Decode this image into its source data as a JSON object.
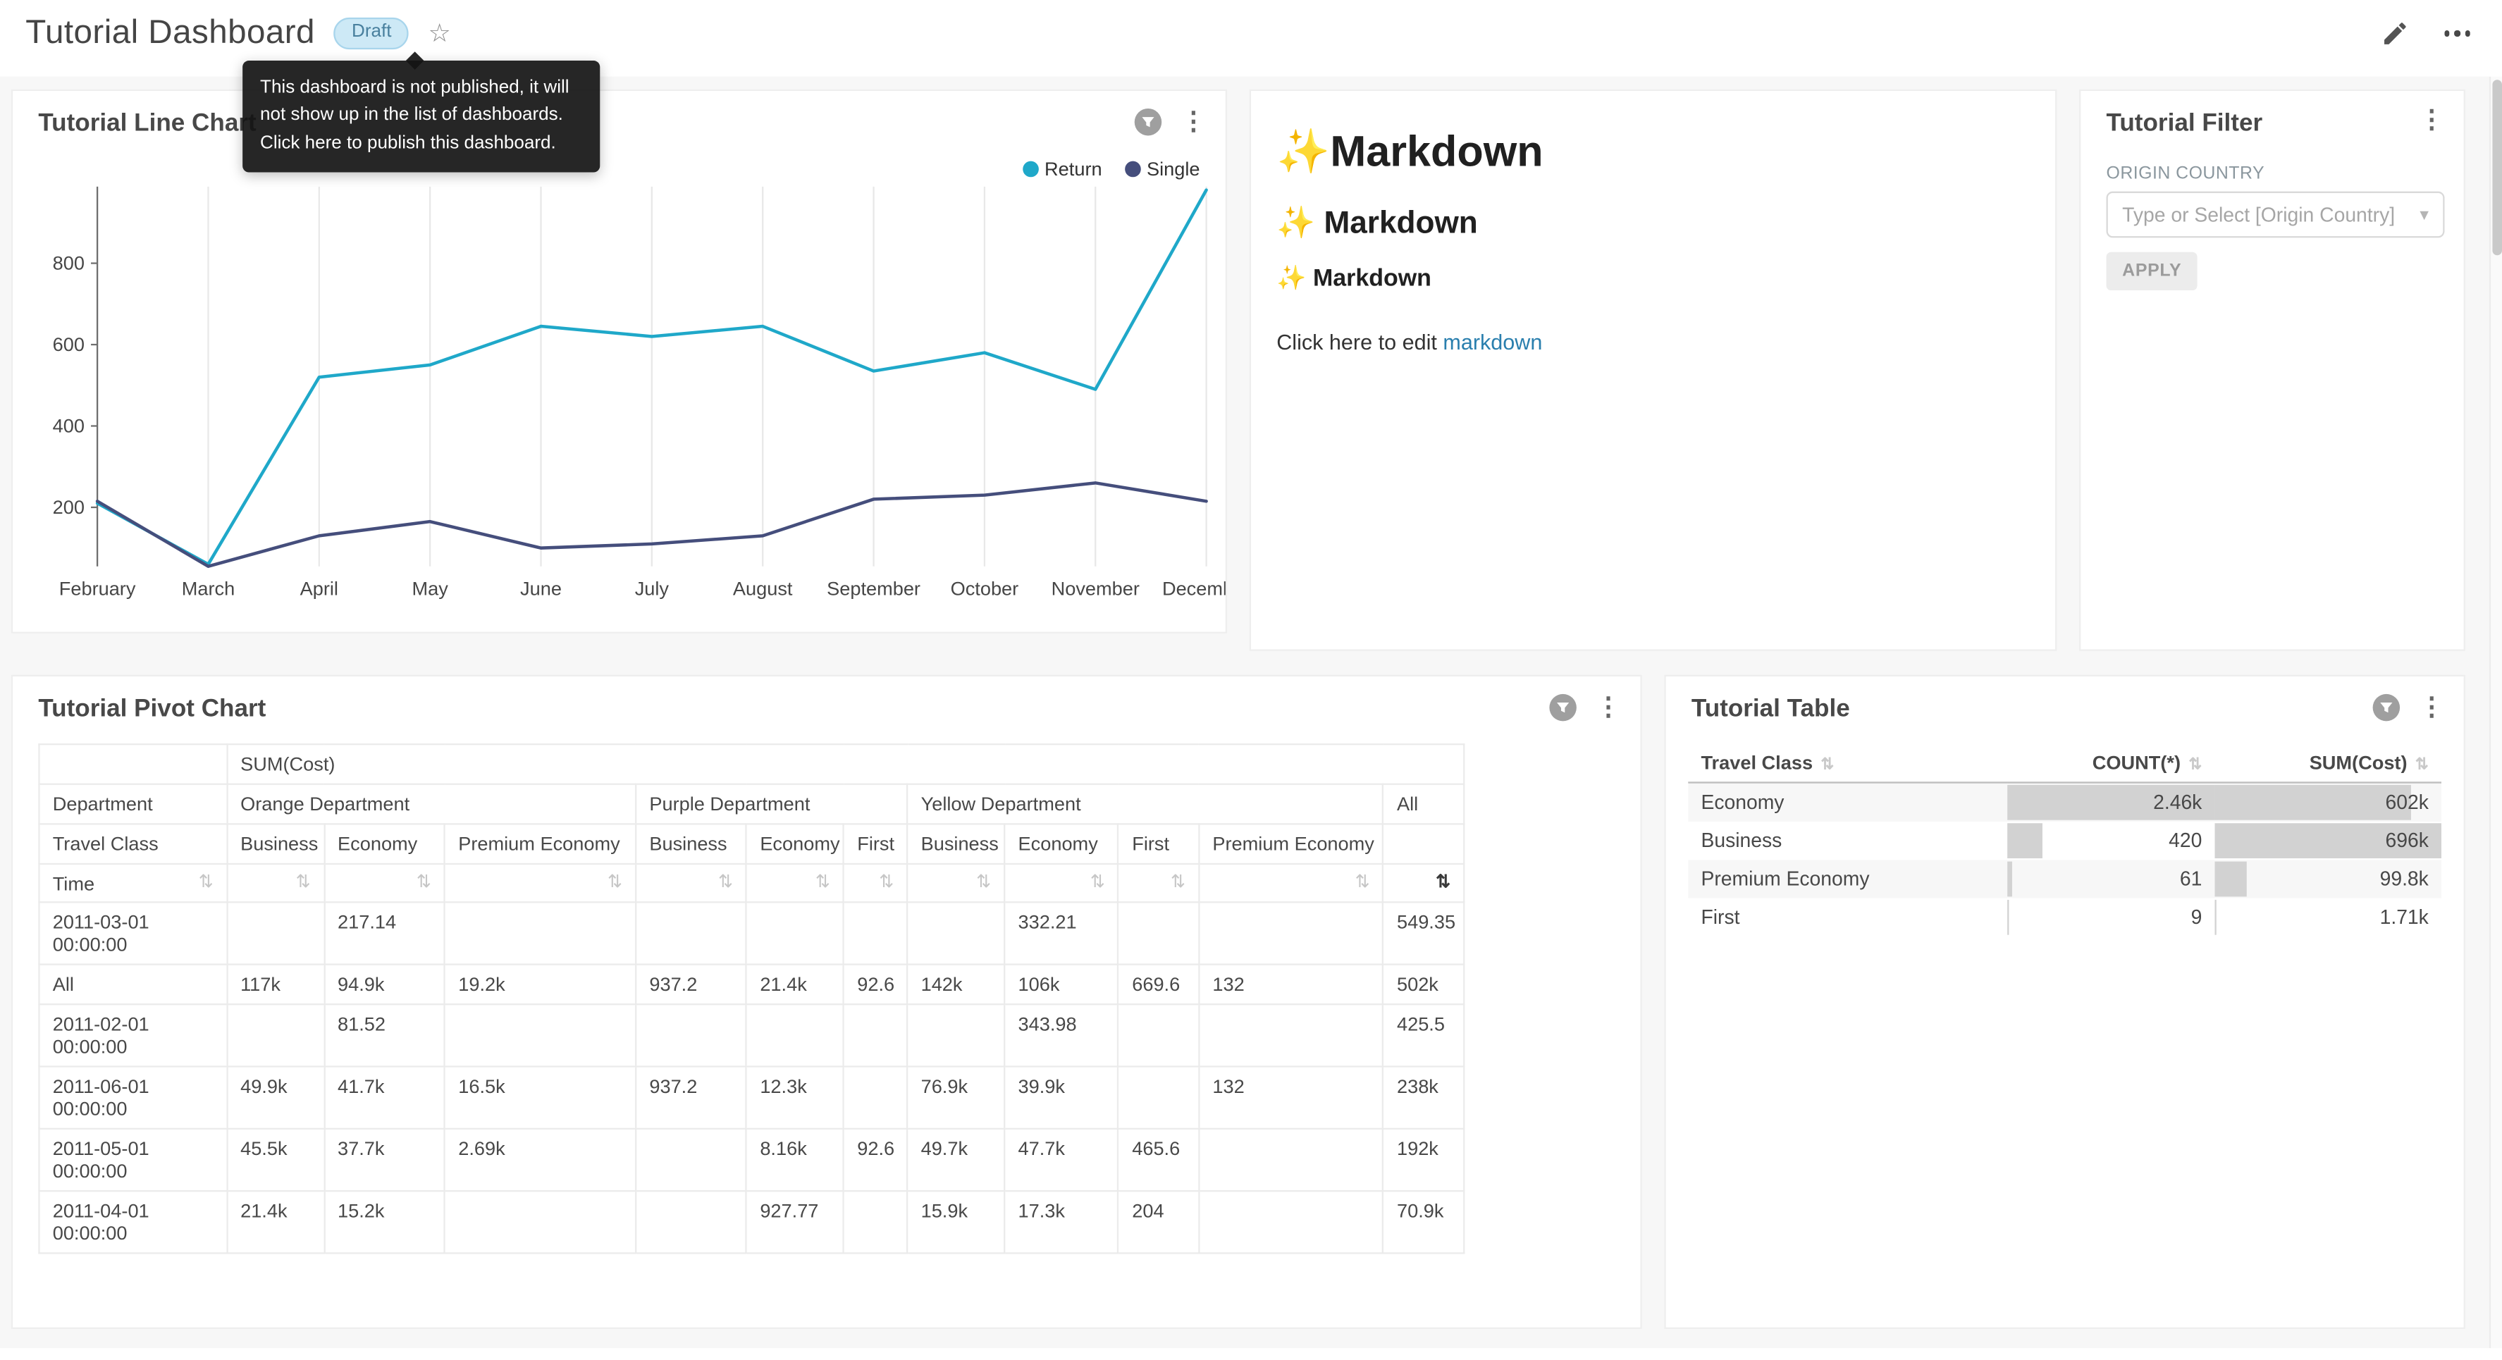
{
  "header": {
    "title": "Tutorial Dashboard",
    "badge": "Draft",
    "tooltip_lines": [
      "This dashboard is not published, it will",
      "not show up in the list of dashboards.",
      "Click here to publish this dashboard."
    ]
  },
  "icons": {
    "favorite": "☆",
    "kebab": "⋮",
    "caret": "▾",
    "sort": "⇅"
  },
  "cards": {
    "line": {
      "title": "Tutorial Line Chart",
      "chart": {
        "type": "line",
        "x": [
          "February",
          "March",
          "April",
          "May",
          "June",
          "July",
          "August",
          "September",
          "October",
          "November",
          "December"
        ],
        "series": [
          {
            "name": "Return",
            "color": "#1FA8C9",
            "values": [
              210,
              60,
              520,
              550,
              645,
              620,
              645,
              535,
              580,
              490,
              980
            ]
          },
          {
            "name": "Single",
            "color": "#454E7C",
            "values": [
              215,
              55,
              130,
              165,
              100,
              110,
              130,
              220,
              230,
              260,
              215
            ]
          }
        ],
        "yticks": [
          200,
          400,
          600,
          800
        ],
        "ymax": 1000,
        "legend_position": "top-right",
        "grid": "vertical"
      }
    },
    "markdown": {
      "h1": {
        "icon": "✨",
        "text": "Markdown"
      },
      "h2": {
        "icon": "✨",
        "text": " Markdown"
      },
      "h3": {
        "icon": "✨",
        "text": " Markdown"
      },
      "body_prefix": "Click here to edit ",
      "body_link": "markdown"
    },
    "filter": {
      "title": "Tutorial Filter",
      "field_label": "ORIGIN COUNTRY",
      "placeholder": "Type or Select [Origin Country]",
      "apply_label": "APPLY"
    },
    "pivot": {
      "title": "Tutorial Pivot Chart",
      "measure": "SUM(Cost)",
      "dept_label": "Department",
      "class_label": "Travel Class",
      "time_label": "Time",
      "groups": [
        {
          "name": "Orange Department",
          "cols": [
            "Business",
            "Economy",
            "Premium Economy"
          ]
        },
        {
          "name": "Purple Department",
          "cols": [
            "Business",
            "Economy",
            "First"
          ]
        },
        {
          "name": "Yellow Department",
          "cols": [
            "Business",
            "Economy",
            "First",
            "Premium Economy"
          ]
        },
        {
          "name": "All",
          "cols": [
            ""
          ]
        }
      ],
      "rows": [
        {
          "label_lines": [
            "2011-03-01",
            "00:00:00"
          ],
          "values": [
            "",
            "217.14",
            "",
            "",
            "",
            "",
            "",
            "332.21",
            "",
            "",
            "549.35"
          ]
        },
        {
          "label_lines": [
            "All"
          ],
          "values": [
            "117k",
            "94.9k",
            "19.2k",
            "937.2",
            "21.4k",
            "92.6",
            "142k",
            "106k",
            "669.6",
            "132",
            "502k"
          ]
        },
        {
          "label_lines": [
            "2011-02-01",
            "00:00:00"
          ],
          "values": [
            "",
            "81.52",
            "",
            "",
            "",
            "",
            "",
            "343.98",
            "",
            "",
            "425.5"
          ]
        },
        {
          "label_lines": [
            "2011-06-01",
            "00:00:00"
          ],
          "values": [
            "49.9k",
            "41.7k",
            "16.5k",
            "937.2",
            "12.3k",
            "",
            "76.9k",
            "39.9k",
            "",
            "132",
            "238k"
          ]
        },
        {
          "label_lines": [
            "2011-05-01",
            "00:00:00"
          ],
          "values": [
            "45.5k",
            "37.7k",
            "2.69k",
            "",
            "8.16k",
            "92.6",
            "49.7k",
            "47.7k",
            "465.6",
            "",
            "192k"
          ]
        },
        {
          "label_lines": [
            "2011-04-01",
            "00:00:00"
          ],
          "values": [
            "21.4k",
            "15.2k",
            "",
            "",
            "927.77",
            "",
            "15.9k",
            "17.3k",
            "204",
            "",
            "70.9k"
          ]
        }
      ]
    },
    "table": {
      "title": "Tutorial Table",
      "columns": [
        "Travel Class",
        "COUNT(*)",
        "SUM(Cost)"
      ],
      "rows": [
        {
          "class": "Economy",
          "count": "2.46k",
          "count_pct": 100,
          "sum": "602k",
          "sum_pct": 86.5
        },
        {
          "class": "Business",
          "count": "420",
          "count_pct": 17,
          "sum": "696k",
          "sum_pct": 100
        },
        {
          "class": "Premium Economy",
          "count": "61",
          "count_pct": 2.5,
          "sum": "99.8k",
          "sum_pct": 14.3
        },
        {
          "class": "First",
          "count": "9",
          "count_pct": 0.4,
          "sum": "1.71k",
          "sum_pct": 0.3
        }
      ]
    }
  }
}
